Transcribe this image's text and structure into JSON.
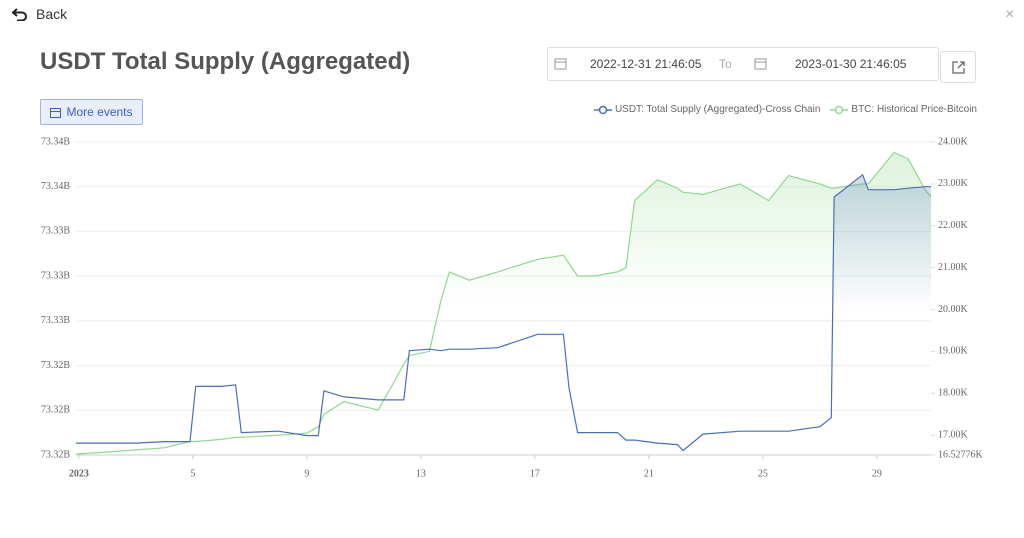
{
  "header": {
    "back": "Back",
    "title": "USDT Total Supply (Aggregated)",
    "start_date": "2022-12-31 21:46:05",
    "to": "To",
    "end_date": "2023-01-30 21:46:05",
    "more_events": "More events"
  },
  "chart_data": {
    "type": "line",
    "x": [
      0.9,
      2,
      3,
      4,
      4.9,
      5.1,
      6,
      6.5,
      6.7,
      8,
      9,
      9.4,
      9.6,
      10.3,
      11.5,
      12,
      12.4,
      12.6,
      13.3,
      13.7,
      14,
      14.7,
      15.7,
      17.1,
      18,
      18.2,
      18.5,
      19.1,
      19.9,
      20.2,
      20.5,
      21.3,
      22,
      22.2,
      22.9,
      24.2,
      25.2,
      25.9,
      27,
      27.4,
      27.5,
      28.5,
      28.7,
      29.6,
      30.1,
      30.7,
      30.9
    ],
    "xlim": [
      0.9,
      30.9
    ],
    "xticks": [
      {
        "value": 1,
        "label": "2023"
      },
      5,
      9,
      13,
      17,
      21,
      25,
      29
    ],
    "series": [
      {
        "name": "USDT: Total Supply (Aggregated)-Cross Chain",
        "color": "#4a6fb5",
        "axis": "y",
        "values": [
          73.3188,
          73.3188,
          73.3188,
          73.3189,
          73.3189,
          73.3226,
          73.3226,
          73.3227,
          73.3195,
          73.3196,
          73.3193,
          73.3193,
          73.3223,
          73.3219,
          73.3217,
          73.3217,
          73.3217,
          73.325,
          73.3251,
          73.325,
          73.3251,
          73.3251,
          73.3252,
          73.3261,
          73.3261,
          73.3225,
          73.3195,
          73.3195,
          73.3195,
          73.319,
          73.319,
          73.3188,
          73.3187,
          73.3183,
          73.3194,
          73.3196,
          73.3196,
          73.3196,
          73.3199,
          73.3205,
          73.3353,
          73.3368,
          73.3358,
          73.3358,
          73.3359,
          73.336,
          73.336
        ]
      },
      {
        "name": "BTC: Historical Price-Bitcoin",
        "color": "#8fd88f",
        "axis": "y2",
        "values": [
          16.55,
          16.6,
          16.65,
          16.7,
          16.85,
          16.85,
          16.9,
          16.95,
          16.95,
          17.0,
          17.05,
          17.2,
          17.5,
          17.8,
          17.6,
          18.2,
          18.7,
          18.9,
          19.0,
          20.2,
          20.9,
          20.7,
          20.9,
          21.2,
          21.3,
          21.1,
          20.8,
          20.8,
          20.9,
          21.0,
          22.6,
          23.1,
          22.9,
          22.8,
          22.75,
          23.0,
          22.6,
          23.2,
          23.0,
          22.9,
          22.9,
          23.0,
          23.0,
          23.75,
          23.6,
          22.85,
          22.7
        ]
      }
    ],
    "ylim": [
      73.318,
      73.339
    ],
    "yticks": [
      {
        "value": 73.318,
        "label": "73.32B"
      },
      {
        "value": 73.321,
        "label": "73.32B"
      },
      {
        "value": 73.324,
        "label": "73.32B"
      },
      {
        "value": 73.327,
        "label": "73.33B"
      },
      {
        "value": 73.33,
        "label": "73.33B"
      },
      {
        "value": 73.333,
        "label": "73.33B"
      },
      {
        "value": 73.336,
        "label": "73.34B"
      },
      {
        "value": 73.339,
        "label": "73.34B"
      }
    ],
    "y2lim": [
      16.52776,
      24
    ],
    "y2ticks": [
      {
        "value": 16.52776,
        "label": "16.52776K"
      },
      {
        "value": 17,
        "label": "17.00K"
      },
      {
        "value": 18,
        "label": "18.00K"
      },
      {
        "value": 19,
        "label": "19.00K"
      },
      {
        "value": 20,
        "label": "20.00K"
      },
      {
        "value": 21,
        "label": "21.00K"
      },
      {
        "value": 22,
        "label": "22.00K"
      },
      {
        "value": 23,
        "label": "23.00K"
      },
      {
        "value": 24,
        "label": "24.00K"
      }
    ],
    "grid": true
  }
}
